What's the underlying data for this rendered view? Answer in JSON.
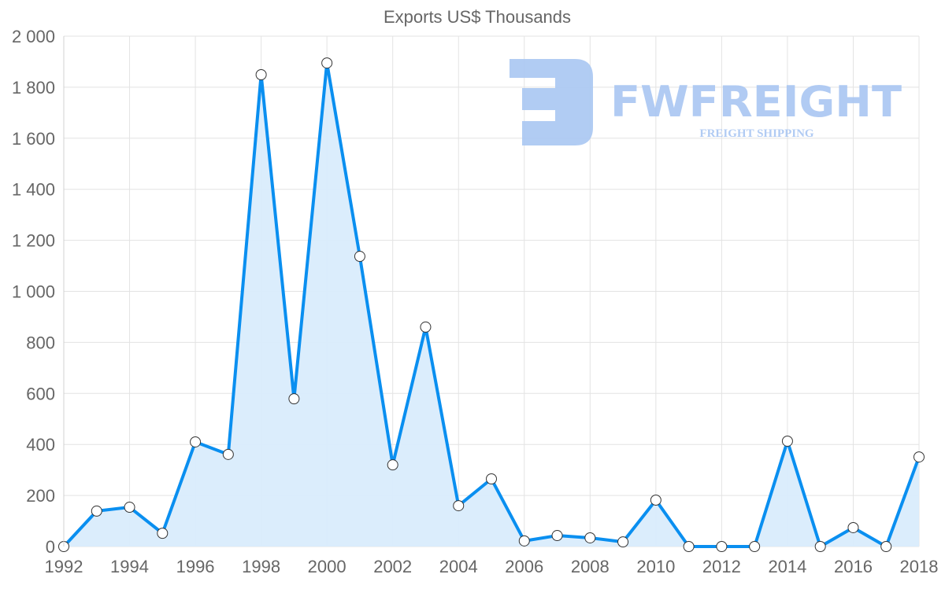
{
  "chart_data": {
    "type": "area",
    "title": "Exports US$ Thousands",
    "xlabel": "",
    "ylabel": "",
    "ylim": [
      0,
      2000
    ],
    "xlim": [
      1992,
      2018
    ],
    "grid": true,
    "y_ticks": [
      "0",
      "200",
      "400",
      "600",
      "800",
      "1 000",
      "1 200",
      "1 400",
      "1 600",
      "1 800",
      "2 000"
    ],
    "y_tick_values": [
      0,
      200,
      400,
      600,
      800,
      1000,
      1200,
      1400,
      1600,
      1800,
      2000
    ],
    "x_ticks": [
      "1992",
      "1994",
      "1996",
      "1998",
      "2000",
      "2002",
      "2004",
      "2006",
      "2008",
      "2010",
      "2012",
      "2014",
      "2016",
      "2018"
    ],
    "x_tick_values": [
      1992,
      1994,
      1996,
      1998,
      2000,
      2002,
      2004,
      2006,
      2008,
      2010,
      2012,
      2014,
      2016,
      2018
    ],
    "series": [
      {
        "name": "Exports US$ Thousands",
        "x": [
          1992,
          1993,
          1994,
          1995,
          1996,
          1997,
          1998,
          1999,
          2000,
          2001,
          2002,
          2003,
          2004,
          2005,
          2006,
          2007,
          2008,
          2009,
          2010,
          2011,
          2012,
          2013,
          2014,
          2015,
          2016,
          2017,
          2018
        ],
        "values": [
          0,
          139,
          154,
          52,
          410,
          361,
          1849,
          579,
          1895,
          1137,
          320,
          860,
          160,
          265,
          22,
          43,
          34,
          18,
          182,
          0,
          0,
          0,
          413,
          0,
          74,
          0,
          351
        ],
        "line_color": "#0a8ff0",
        "fill_color": "#d9ecfc"
      }
    ]
  },
  "watermark": {
    "brand": "FWFREIGHT",
    "tagline": "FREIGHT SHIPPING",
    "color": "#a9c6f2"
  }
}
